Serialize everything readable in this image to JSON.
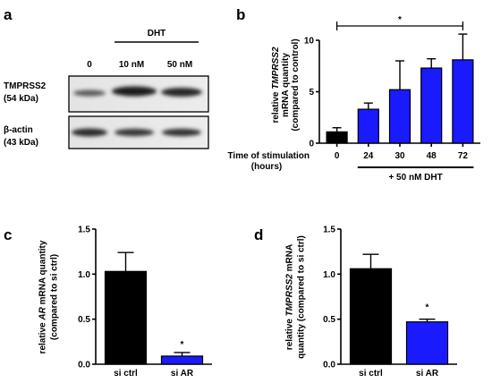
{
  "panels": {
    "a": {
      "letter": "a",
      "treatment_label": "DHT",
      "lanes": [
        "0",
        "10 nM",
        "50 nM"
      ],
      "blots": [
        {
          "name_line1": "TMPRSS2",
          "name_line2": "(54 kDa)"
        },
        {
          "name_line1": "β-actin",
          "name_line2": "(43 kDa)"
        }
      ]
    },
    "b": {
      "letter": "b",
      "significance": "*"
    },
    "c": {
      "letter": "c",
      "significance": "*"
    },
    "d": {
      "letter": "d",
      "significance": "*"
    }
  },
  "colors": {
    "control": "#000000",
    "treated": "#1a1aff"
  },
  "chart_data": [
    {
      "panel": "b",
      "type": "bar",
      "ylabel_lines": [
        {
          "pre": "relative ",
          "ital": "TMPRSS2",
          "post": ""
        },
        {
          "pre": "mRNA quantity",
          "ital": "",
          "post": ""
        },
        {
          "pre": "(compared to control)",
          "ital": "",
          "post": ""
        }
      ],
      "xlabel_line1": "Time of stimulation",
      "xlabel_line2": "(hours)",
      "categories": [
        "0",
        "24",
        "30",
        "48",
        "72"
      ],
      "values": [
        1.1,
        3.3,
        5.2,
        7.3,
        8.1
      ],
      "errors": [
        0.4,
        0.6,
        2.8,
        0.9,
        2.5
      ],
      "bar_colors": [
        "control",
        "treated",
        "treated",
        "treated",
        "treated"
      ],
      "ylim": [
        0,
        10
      ],
      "yticks": [
        0,
        5,
        10
      ],
      "bracket_label": "+ 50 nM DHT"
    },
    {
      "panel": "c",
      "type": "bar",
      "ylabel_lines": [
        {
          "pre": "relative ",
          "ital": "AR",
          "post": " mRNA quantity"
        },
        {
          "pre": "(compared to si ctrl)",
          "ital": "",
          "post": ""
        }
      ],
      "categories": [
        "si ctrl",
        "si AR"
      ],
      "values": [
        1.03,
        0.09
      ],
      "errors": [
        0.21,
        0.04
      ],
      "bar_colors": [
        "control",
        "treated"
      ],
      "ylim": [
        0,
        1.5
      ],
      "yticks": [
        "0.0",
        "0.5",
        "1.0",
        "1.5"
      ]
    },
    {
      "panel": "d",
      "type": "bar",
      "ylabel_lines": [
        {
          "pre": "relative ",
          "ital": "TMPRSS2",
          "post": " mRNA"
        },
        {
          "pre": "quantity (compared to si ctrl)",
          "ital": "",
          "post": ""
        }
      ],
      "categories": [
        "si ctrl",
        "si AR"
      ],
      "values": [
        1.06,
        0.47
      ],
      "errors": [
        0.16,
        0.03
      ],
      "bar_colors": [
        "control",
        "treated"
      ],
      "ylim": [
        0,
        1.5
      ],
      "yticks": [
        "0.0",
        "0.5",
        "1.0",
        "1.5"
      ]
    }
  ]
}
